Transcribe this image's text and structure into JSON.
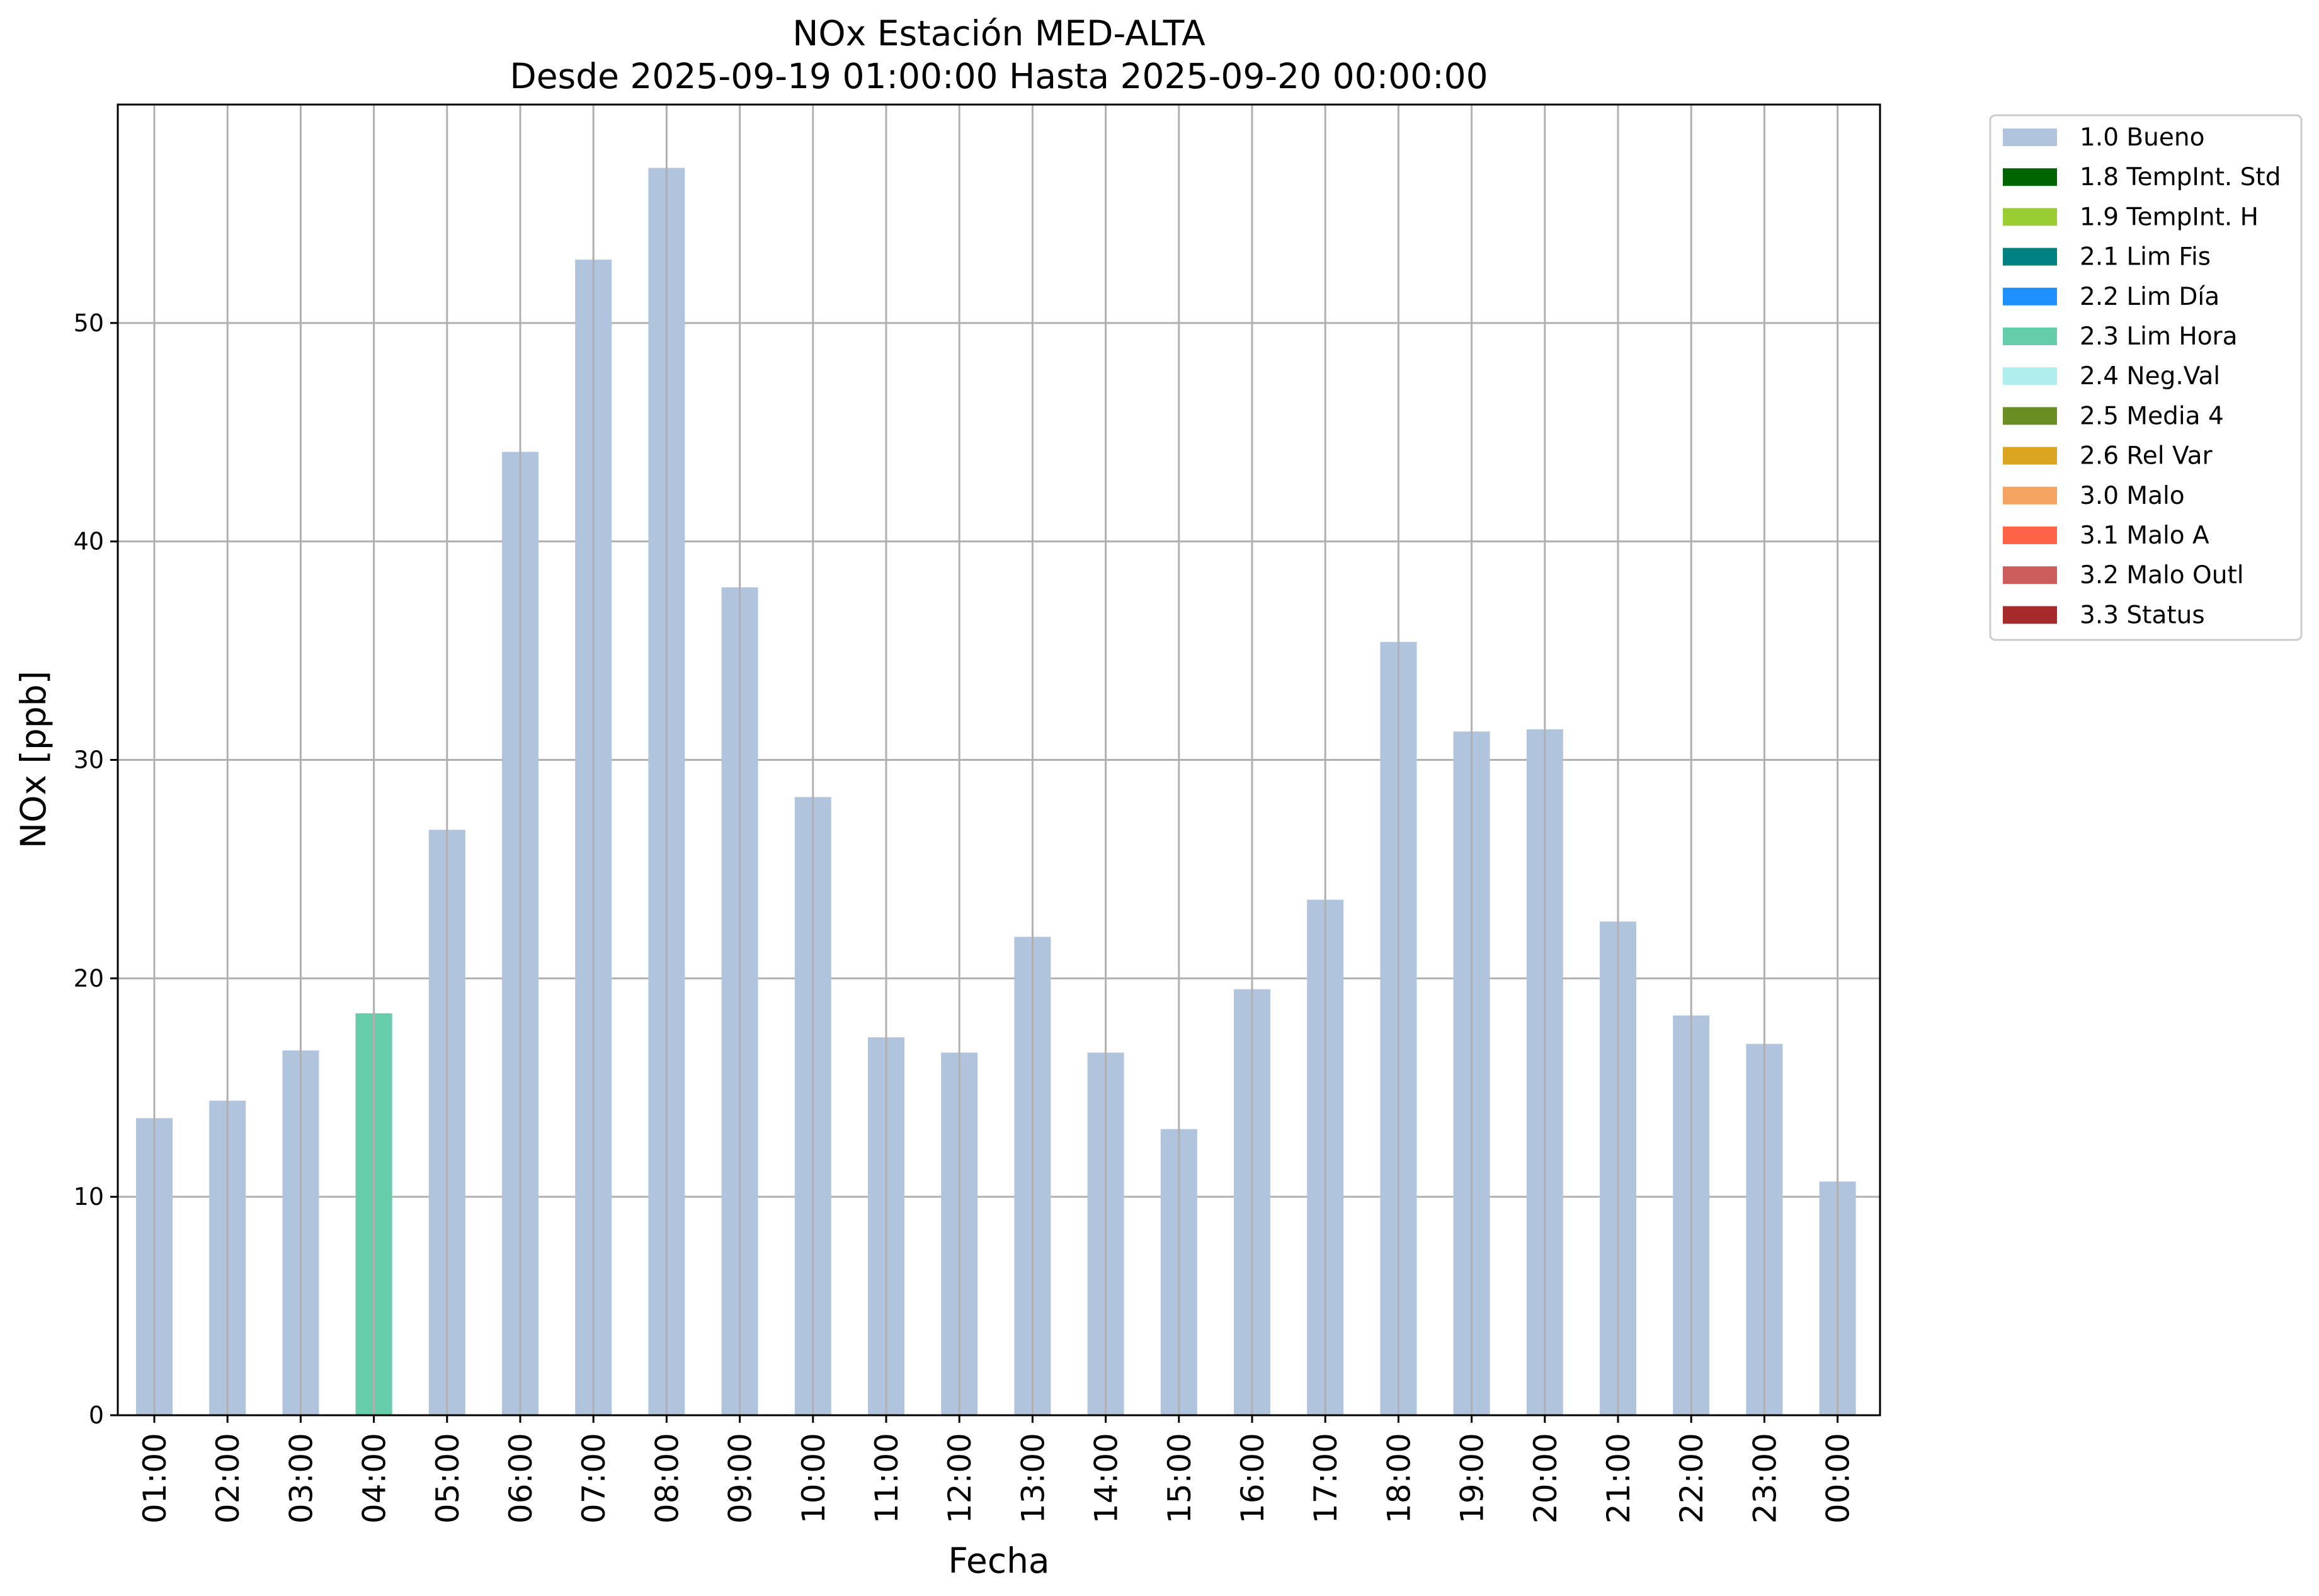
{
  "chart_data": {
    "type": "bar",
    "title": "NOx Estación MED-ALTA",
    "subtitle": "Desde 2025-09-19 01:00:00 Hasta 2025-09-20 00:00:00",
    "xlabel": "Fecha",
    "ylabel": "NOx [ppb]",
    "ylim": [
      0,
      60
    ],
    "yticks": [
      0,
      10,
      20,
      30,
      40,
      50
    ],
    "grid": true,
    "legend_position": "outside-right-top",
    "categories": [
      "01:00",
      "02:00",
      "03:00",
      "04:00",
      "05:00",
      "06:00",
      "07:00",
      "08:00",
      "09:00",
      "10:00",
      "11:00",
      "12:00",
      "13:00",
      "14:00",
      "15:00",
      "16:00",
      "17:00",
      "18:00",
      "19:00",
      "20:00",
      "21:00",
      "22:00",
      "23:00",
      "00:00"
    ],
    "values": [
      13.6,
      14.4,
      16.7,
      18.4,
      26.8,
      44.1,
      52.9,
      57.1,
      37.9,
      28.3,
      17.3,
      16.6,
      21.9,
      16.6,
      13.1,
      19.5,
      23.6,
      35.4,
      31.3,
      31.4,
      22.6,
      18.3,
      17.0,
      10.7
    ],
    "bar_flags": [
      "1.0 Bueno",
      "1.0 Bueno",
      "1.0 Bueno",
      "2.3 Lim Hora",
      "1.0 Bueno",
      "1.0 Bueno",
      "1.0 Bueno",
      "1.0 Bueno",
      "1.0 Bueno",
      "1.0 Bueno",
      "1.0 Bueno",
      "1.0 Bueno",
      "1.0 Bueno",
      "1.0 Bueno",
      "1.0 Bueno",
      "1.0 Bueno",
      "1.0 Bueno",
      "1.0 Bueno",
      "1.0 Bueno",
      "1.0 Bueno",
      "1.0 Bueno",
      "1.0 Bueno",
      "1.0 Bueno",
      "1.0 Bueno"
    ],
    "legend": [
      {
        "label": "1.0 Bueno",
        "color": "#b0c4de"
      },
      {
        "label": "1.8 TempInt. Std",
        "color": "#006400"
      },
      {
        "label": "1.9 TempInt. H",
        "color": "#9acd32"
      },
      {
        "label": "2.1 Lim Fis",
        "color": "#008080"
      },
      {
        "label": "2.2 Lim Día",
        "color": "#1e90ff"
      },
      {
        "label": "2.3 Lim Hora",
        "color": "#66cdaa"
      },
      {
        "label": "2.4 Neg.Val",
        "color": "#afeeee"
      },
      {
        "label": "2.5 Media 4",
        "color": "#6b8e23"
      },
      {
        "label": "2.6 Rel Var",
        "color": "#daa520"
      },
      {
        "label": "3.0 Malo",
        "color": "#f4a460"
      },
      {
        "label": "3.1 Malo A",
        "color": "#ff6347"
      },
      {
        "label": "3.2 Malo Outl",
        "color": "#cd5c5c"
      },
      {
        "label": "3.3 Status",
        "color": "#a52a2a"
      }
    ]
  }
}
